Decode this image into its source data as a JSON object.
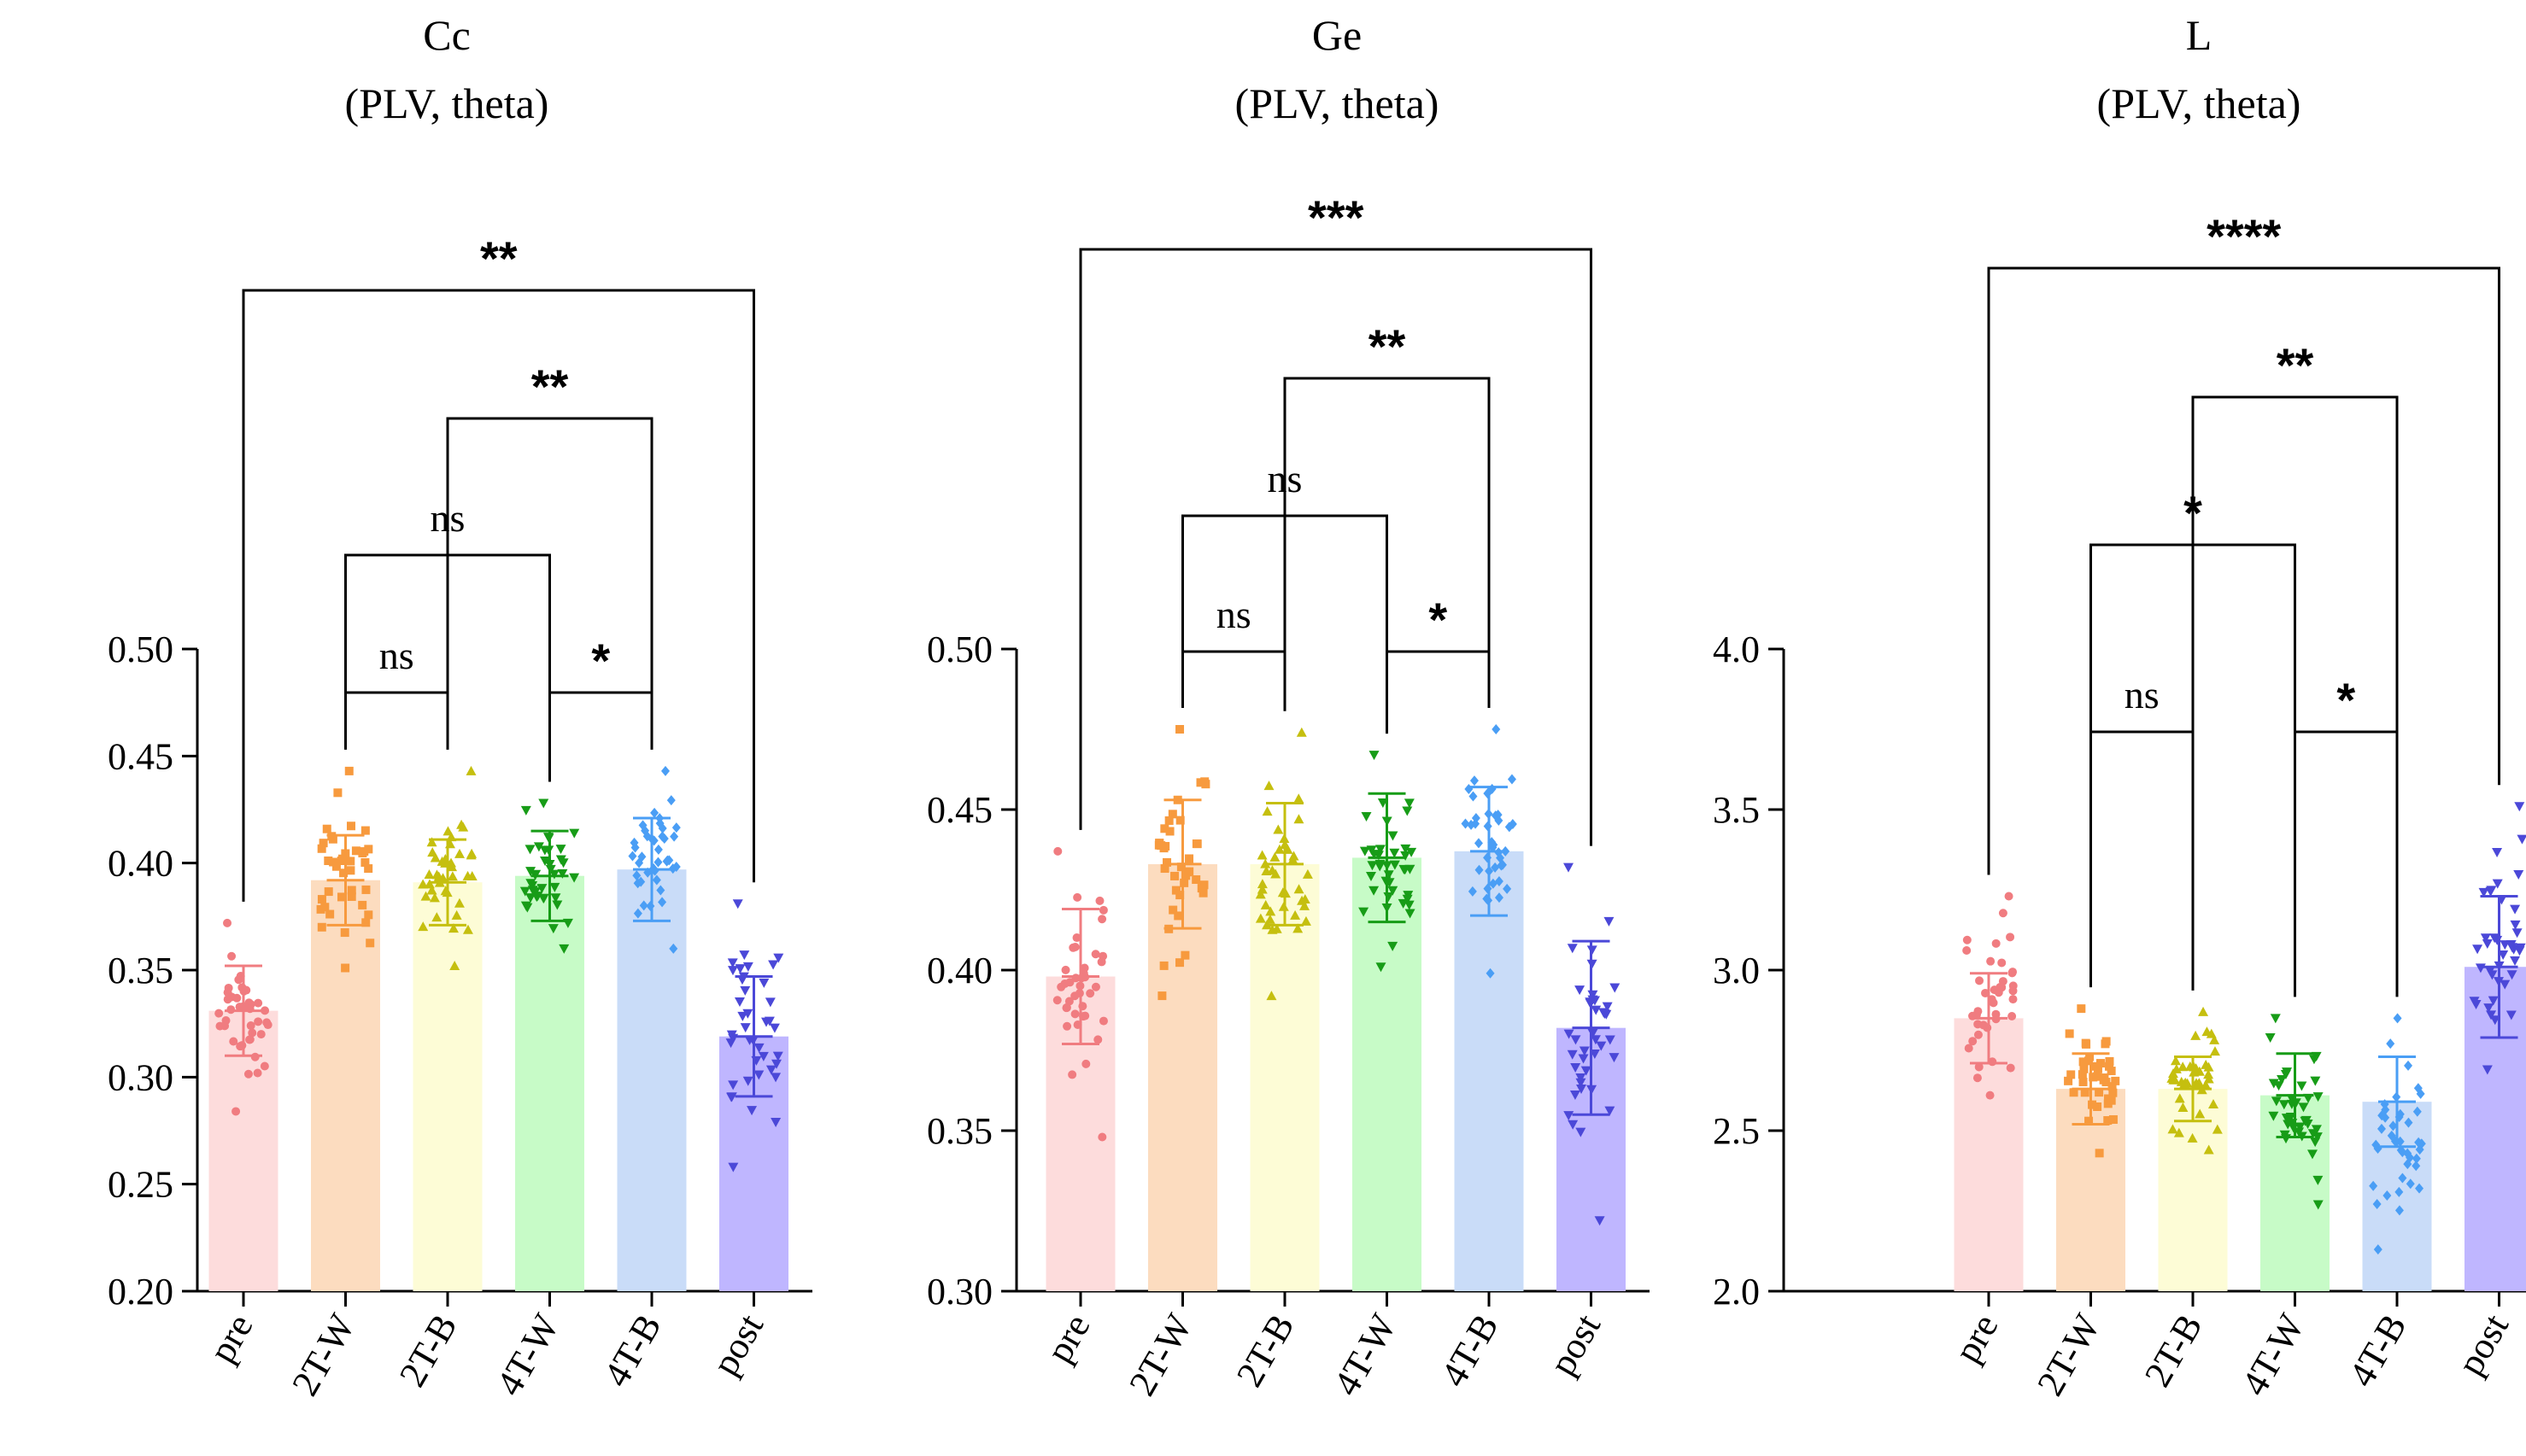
{
  "colors": {
    "pre": {
      "fill": "#fddcdc",
      "stroke": "#f07c80"
    },
    "2T-W": {
      "fill": "#fcdcbf",
      "stroke": "#f79a3e"
    },
    "2T-B": {
      "fill": "#fdfcd6",
      "stroke": "#c5bf0f"
    },
    "4T-W": {
      "fill": "#c7fbc7",
      "stroke": "#179c17"
    },
    "4T-B": {
      "fill": "#c9dcf8",
      "stroke": "#4a9ef5"
    },
    "post": {
      "fill": "#bfb6ff",
      "stroke": "#4b48d8"
    }
  },
  "chart_data": [
    {
      "type": "bar",
      "title": "Cc",
      "subtitle": "(PLV, theta)",
      "categories": [
        "pre",
        "2T-W",
        "2T-B",
        "4T-W",
        "4T-B",
        "post"
      ],
      "values": [
        0.331,
        0.392,
        0.391,
        0.394,
        0.397,
        0.319
      ],
      "sd": [
        0.021,
        0.021,
        0.02,
        0.021,
        0.024,
        0.028
      ],
      "pointRange": [
        [
          0.284,
          0.372
        ],
        [
          0.351,
          0.443
        ],
        [
          0.352,
          0.443
        ],
        [
          0.36,
          0.428
        ],
        [
          0.36,
          0.443
        ],
        [
          0.258,
          0.381
        ]
      ],
      "ylim": [
        0.2,
        0.5
      ],
      "yticks": [
        "0.20",
        "0.25",
        "0.30",
        "0.35",
        "0.40",
        "0.45",
        "0.50"
      ],
      "comparisons": [
        {
          "a": 1,
          "b": 2,
          "level": 1,
          "label": "ns"
        },
        {
          "a": 3,
          "b": 4,
          "level": 1,
          "label": "*"
        },
        {
          "a": 1,
          "b": 3,
          "level": 2,
          "label": "ns"
        },
        {
          "a": 2,
          "b": 4,
          "level": 3,
          "label": "**"
        },
        {
          "a": 0,
          "b": 5,
          "level": 4,
          "label": "**"
        }
      ]
    },
    {
      "type": "bar",
      "title": "Ge",
      "subtitle": "(PLV, theta)",
      "categories": [
        "pre",
        "2T-W",
        "2T-B",
        "4T-W",
        "4T-B",
        "post"
      ],
      "values": [
        0.398,
        0.433,
        0.433,
        0.435,
        0.437,
        0.382
      ],
      "sd": [
        0.021,
        0.02,
        0.019,
        0.02,
        0.02,
        0.027
      ],
      "pointRange": [
        [
          0.348,
          0.437
        ],
        [
          0.392,
          0.475
        ],
        [
          0.392,
          0.474
        ],
        [
          0.401,
          0.467
        ],
        [
          0.399,
          0.475
        ],
        [
          0.322,
          0.432
        ]
      ],
      "ylim": [
        0.3,
        0.5
      ],
      "yticks": [
        "0.30",
        "0.35",
        "0.40",
        "0.45",
        "0.50"
      ],
      "comparisons": [
        {
          "a": 1,
          "b": 2,
          "level": 1,
          "label": "ns"
        },
        {
          "a": 3,
          "b": 4,
          "level": 1,
          "label": "*"
        },
        {
          "a": 1,
          "b": 3,
          "level": 2,
          "label": "ns"
        },
        {
          "a": 2,
          "b": 4,
          "level": 3,
          "label": "**"
        },
        {
          "a": 0,
          "b": 5,
          "level": 4,
          "label": "***"
        }
      ]
    },
    {
      "type": "bar",
      "title": "L",
      "subtitle": "(PLV, theta)",
      "categories": [
        "pre",
        "2T-W",
        "2T-B",
        "4T-W",
        "4T-B",
        "post"
      ],
      "values": [
        2.85,
        2.63,
        2.63,
        2.61,
        2.59,
        3.01
      ],
      "sd": [
        0.14,
        0.11,
        0.1,
        0.13,
        0.14,
        0.22
      ],
      "pointRange": [
        [
          2.61,
          3.23
        ],
        [
          2.43,
          2.88
        ],
        [
          2.44,
          2.87
        ],
        [
          2.27,
          2.85
        ],
        [
          2.13,
          2.85
        ],
        [
          2.69,
          3.51
        ]
      ],
      "ylim": [
        2.0,
        4.0
      ],
      "yticks": [
        "2.0",
        "2.5",
        "3.0",
        "3.5",
        "4.0"
      ],
      "comparisons": [
        {
          "a": 1,
          "b": 2,
          "level": 1,
          "label": "ns"
        },
        {
          "a": 3,
          "b": 4,
          "level": 1,
          "label": "*"
        },
        {
          "a": 1,
          "b": 3,
          "level": 2,
          "label": "*"
        },
        {
          "a": 2,
          "b": 4,
          "level": 3,
          "label": "**"
        },
        {
          "a": 0,
          "b": 5,
          "level": 4,
          "label": "****"
        }
      ]
    }
  ]
}
